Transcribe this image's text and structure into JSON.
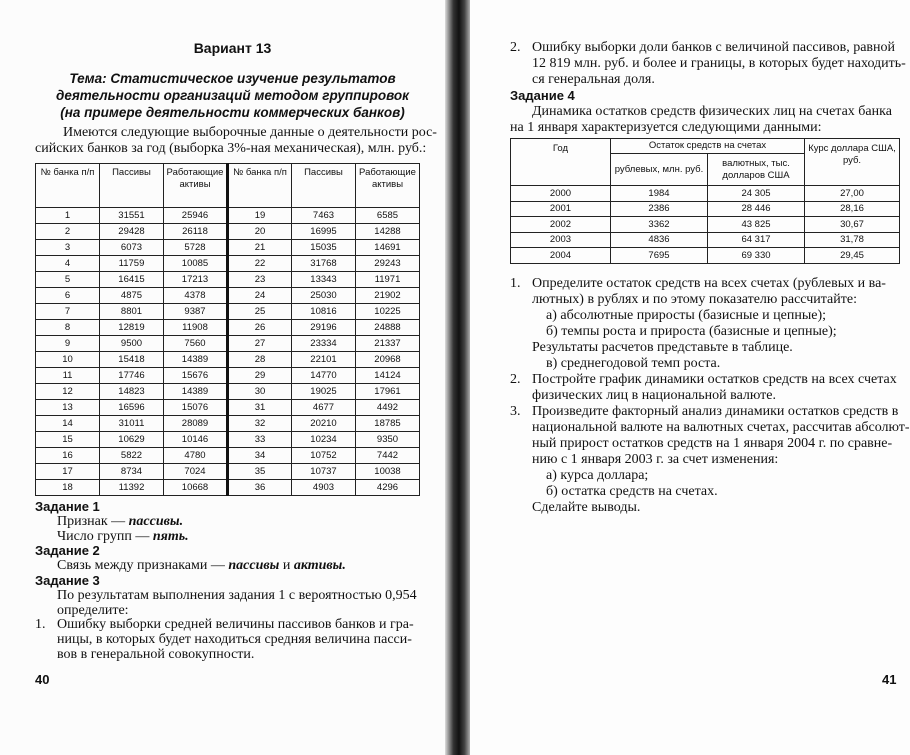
{
  "left_page": {
    "variant": "Вариант 13",
    "topic": [
      "Тема: Статистическое изучение результатов",
      "деятельности организаций методом группировок",
      "(на примере деятельности коммерческих банков)"
    ],
    "intro": [
      "Имеются следующие выборочные данные о деятельности рос-",
      "сийских банков за год (выборка 3%-ная механическая), млн. руб.:"
    ],
    "table": {
      "headers": [
        "№ банка п/п",
        "Пассивы",
        "Работающие активы",
        "№ банка п/п",
        "Пассивы",
        "Работающие активы"
      ],
      "rows": [
        [
          "1",
          "31551",
          "25946",
          "19",
          "7463",
          "6585"
        ],
        [
          "2",
          "29428",
          "26118",
          "20",
          "16995",
          "14288"
        ],
        [
          "3",
          "6073",
          "5728",
          "21",
          "15035",
          "14691"
        ],
        [
          "4",
          "11759",
          "10085",
          "22",
          "31768",
          "29243"
        ],
        [
          "5",
          "16415",
          "17213",
          "23",
          "13343",
          "11971"
        ],
        [
          "6",
          "4875",
          "4378",
          "24",
          "25030",
          "21902"
        ],
        [
          "7",
          "8801",
          "9387",
          "25",
          "10816",
          "10225"
        ],
        [
          "8",
          "12819",
          "11908",
          "26",
          "29196",
          "24888"
        ],
        [
          "9",
          "9500",
          "7560",
          "27",
          "23334",
          "21337"
        ],
        [
          "10",
          "15418",
          "14389",
          "28",
          "22101",
          "20968"
        ],
        [
          "11",
          "17746",
          "15676",
          "29",
          "14770",
          "14124"
        ],
        [
          "12",
          "14823",
          "14389",
          "30",
          "19025",
          "17961"
        ],
        [
          "13",
          "16596",
          "15076",
          "31",
          "4677",
          "4492"
        ],
        [
          "14",
          "31011",
          "28089",
          "32",
          "20210",
          "18785"
        ],
        [
          "15",
          "10629",
          "10146",
          "33",
          "10234",
          "9350"
        ],
        [
          "16",
          "5822",
          "4780",
          "34",
          "10752",
          "7442"
        ],
        [
          "17",
          "8734",
          "7024",
          "35",
          "10737",
          "10038"
        ],
        [
          "18",
          "11392",
          "10668",
          "36",
          "4903",
          "4296"
        ]
      ]
    },
    "task1": {
      "title": "Задание 1",
      "l1a": "Признак — ",
      "l1b": "пассивы.",
      "l2a": "Число групп — ",
      "l2b": "пять."
    },
    "task2": {
      "title": "Задание 2",
      "la": "Связь между признаками — ",
      "lb": "пассивы",
      "lc": " и ",
      "ld": "активы."
    },
    "task3": {
      "title": "Задание 3",
      "lines": [
        "По результатам выполнения задания 1 с вероятностью 0,954",
        "определите:"
      ],
      "item1_num": "1.",
      "item1": [
        "Ошибку выборки средней величины пассивов банков и гра-",
        "ницы, в которых будет находиться средняя величина пасси-",
        "вов в генеральной совокупности."
      ]
    },
    "page_number": "40"
  },
  "right_page": {
    "item2_num": "2.",
    "item2": [
      "Ошибку выборки доли банков с величиной пассивов, равной",
      "12 819 млн. руб. и более и границы, в которых будет находить-",
      "ся генеральная доля."
    ],
    "task4": {
      "title": "Задание 4",
      "intro": [
        "Динамика остатков средств физических лиц на счетах банка",
        "на 1 января характеризуется следующими данными:"
      ]
    },
    "table": {
      "h_year": "Год",
      "h_group": "Остаток средств на счетах",
      "h_rub": "рублевых, млн. руб.",
      "h_usd": "валютных, тыс. долларов США",
      "h_rate": "Курс доллара США, руб.",
      "rows": [
        [
          "2000",
          "1984",
          "24 305",
          "27,00"
        ],
        [
          "2001",
          "2386",
          "28 446",
          "28,16"
        ],
        [
          "2002",
          "3362",
          "43 825",
          "30,67"
        ],
        [
          "2003",
          "4836",
          "64 317",
          "31,78"
        ],
        [
          "2004",
          "7695",
          "69 330",
          "29,45"
        ]
      ]
    },
    "list": [
      {
        "n": "1.",
        "lines": [
          "Определите остаток средств на всех счетах (рублевых и ва-",
          "лютных) в рублях и по этому показателю рассчитайте:"
        ]
      },
      {
        "n": "",
        "lines": [
          "а) абсолютные приросты (базисные и цепные);",
          "б) темпы роста и прироста (базисные и цепные);"
        ],
        "indent": true
      },
      {
        "n": "",
        "lines": [
          "Результаты расчетов представьте в таблице."
        ]
      },
      {
        "n": "",
        "lines": [
          "в) среднегодовой темп роста."
        ],
        "indent": true
      },
      {
        "n": "2.",
        "lines": [
          "Постройте график динамики остатков средств на всех счетах",
          "физических лиц в национальной валюте."
        ]
      },
      {
        "n": "3.",
        "lines": [
          "Произведите факторный анализ динамики остатков средств в",
          "национальной валюте на валютных счетах, рассчитав абсолют-",
          "ный прирост остатков средств на 1 января 2004 г. по сравне-",
          "нию с 1 января 2003 г. за счет изменения:"
        ]
      },
      {
        "n": "",
        "lines": [
          "а) курса доллара;",
          "б) остатка средств на счетах."
        ],
        "indent": true
      },
      {
        "n": "",
        "lines": [
          "Сделайте выводы."
        ]
      }
    ],
    "page_number": "41"
  }
}
